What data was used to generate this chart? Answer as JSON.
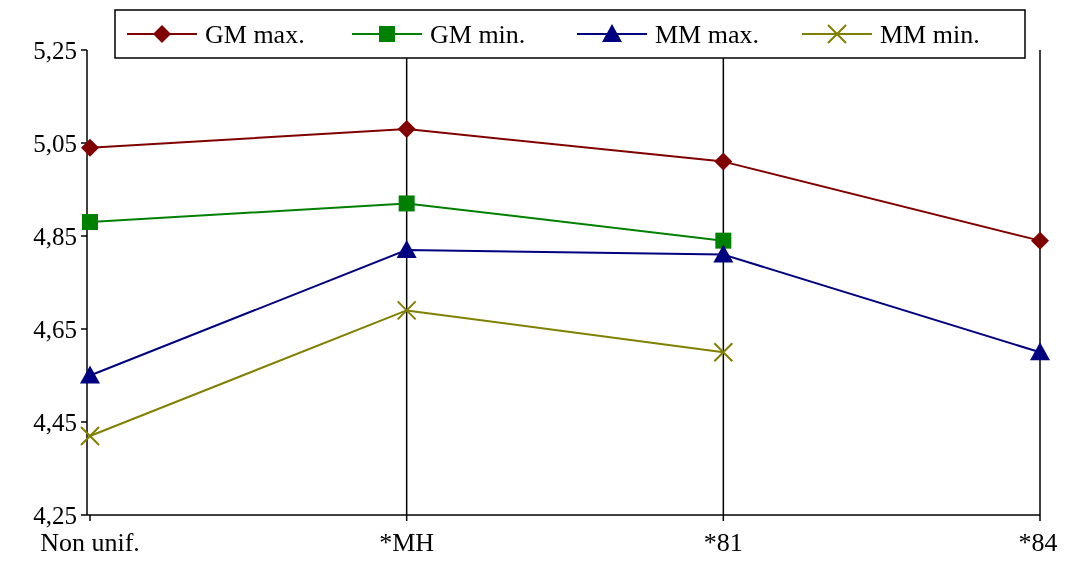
{
  "chart_data": {
    "type": "line",
    "categories": [
      "Non unif.",
      "*MH",
      "*81",
      "*84"
    ],
    "series": [
      {
        "name": "GM max.",
        "color": "#800000",
        "marker": "diamond",
        "values": [
          5.04,
          5.08,
          5.01,
          4.84
        ]
      },
      {
        "name": "GM min.",
        "color": "#008000",
        "marker": "square",
        "values": [
          4.88,
          4.92,
          4.84,
          null
        ]
      },
      {
        "name": "MM max.",
        "color": "#000080",
        "marker": "triangle",
        "values": [
          4.55,
          4.82,
          4.81,
          4.6
        ]
      },
      {
        "name": "MM min.",
        "color": "#808000",
        "marker": "cross",
        "values": [
          4.42,
          4.69,
          4.6,
          null
        ]
      }
    ],
    "ylim": [
      4.25,
      5.25
    ],
    "yticks": [
      {
        "value": 4.25,
        "label": "4,25"
      },
      {
        "value": 4.45,
        "label": "4,45"
      },
      {
        "value": 4.65,
        "label": "4,65"
      },
      {
        "value": 4.85,
        "label": "4,85"
      },
      {
        "value": 5.05,
        "label": "5,05"
      },
      {
        "value": 5.25,
        "label": "5,25"
      }
    ],
    "grid": "x",
    "legend": "top",
    "line_style": "solid"
  }
}
